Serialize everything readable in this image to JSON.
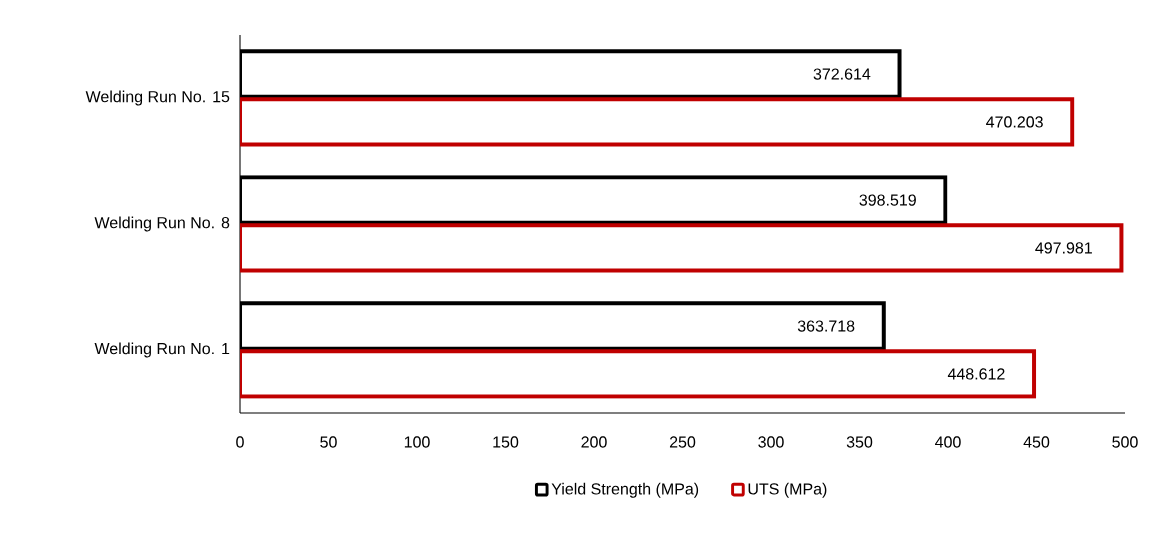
{
  "chart_data": {
    "type": "bar",
    "orientation": "horizontal",
    "categories": [
      "Welding Run No. 15",
      "Welding Run No. 8",
      "Welding Run No. 1"
    ],
    "series": [
      {
        "name": "Yield Strength (MPa)",
        "color": "#000000",
        "values": [
          372.614,
          398.519,
          363.718
        ]
      },
      {
        "name": "UTS (MPa)",
        "color": "#c00000",
        "values": [
          470.203,
          497.981,
          448.612
        ]
      }
    ],
    "xlim": [
      0,
      500
    ],
    "xticks": [
      0,
      50,
      100,
      150,
      200,
      250,
      300,
      350,
      400,
      450,
      500
    ],
    "data_labels": true,
    "grid": false,
    "legend": "bottom"
  }
}
